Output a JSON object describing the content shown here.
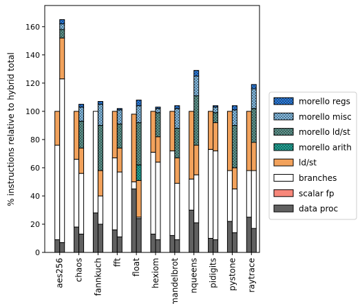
{
  "chart_data": {
    "type": "bar",
    "stacked": true,
    "ylabel": "% instructions relative to hybrid total",
    "xlabel": "",
    "ylim": [
      0,
      175
    ],
    "yticks": [
      0,
      20,
      40,
      60,
      80,
      100,
      120,
      140,
      160
    ],
    "grid": false,
    "legend_position": "right",
    "categories": [
      "aes256",
      "chaos",
      "fannkuch",
      "fft",
      "float",
      "hexiom",
      "mandelbrot",
      "nqueens",
      "pidigits",
      "pystone",
      "raytrace"
    ],
    "bars_per_category": [
      "hybrid",
      "purecap"
    ],
    "series": [
      {
        "name": "data proc",
        "color": "#616161",
        "pattern": "none"
      },
      {
        "name": "scalar fp",
        "color": "#f8877a",
        "pattern": "none"
      },
      {
        "name": "branches",
        "color": "#ffffff",
        "pattern": "none"
      },
      {
        "name": "ld/st",
        "color": "#f2a25c",
        "pattern": "none"
      },
      {
        "name": "morello arith",
        "color": "#1fa89a",
        "pattern": "dots"
      },
      {
        "name": "morello ld/st",
        "color": "#5f9890",
        "pattern": "dots"
      },
      {
        "name": "morello misc",
        "color": "#86c0e8",
        "pattern": "dots"
      },
      {
        "name": "morello regs",
        "color": "#2a7de1",
        "pattern": "dots"
      }
    ],
    "values": {
      "aes256": {
        "hybrid": [
          9,
          0,
          67,
          24,
          0,
          0,
          0,
          0
        ],
        "purecap": [
          7,
          0,
          116,
          29,
          0,
          6,
          4,
          3
        ]
      },
      "chaos": {
        "hybrid": [
          18,
          0,
          48,
          34,
          0,
          0,
          0,
          0
        ],
        "purecap": [
          13,
          0,
          43,
          18,
          0,
          19,
          10,
          2
        ]
      },
      "fannkuch": {
        "hybrid": [
          28,
          0,
          72,
          0,
          0,
          0,
          0,
          0
        ],
        "purecap": [
          20,
          0,
          20,
          18,
          0,
          32,
          15,
          2
        ]
      },
      "fft": {
        "hybrid": [
          16,
          0,
          51,
          33,
          0,
          0,
          0,
          0
        ],
        "purecap": [
          11,
          0,
          46,
          17,
          0,
          17,
          10,
          1
        ]
      },
      "float": {
        "hybrid": [
          45,
          0,
          5,
          48,
          0,
          0,
          0,
          0
        ],
        "purecap": [
          24,
          0,
          1,
          26,
          11,
          30,
          12,
          4
        ]
      },
      "hexiom": {
        "hybrid": [
          13,
          0,
          58,
          29,
          0,
          0,
          0,
          0
        ],
        "purecap": [
          9,
          0,
          55,
          18,
          0,
          17,
          3,
          1
        ]
      },
      "mandelbrot": {
        "hybrid": [
          12,
          0,
          60,
          28,
          0,
          0,
          0,
          0
        ],
        "purecap": [
          9,
          0,
          40,
          18,
          0,
          21,
          14,
          2
        ]
      },
      "nqueens": {
        "hybrid": [
          30,
          0,
          22,
          48,
          0,
          0,
          0,
          0
        ],
        "purecap": [
          21,
          0,
          34,
          21,
          0,
          35,
          14,
          4
        ]
      },
      "pidigits": {
        "hybrid": [
          10,
          0,
          63,
          27,
          0,
          0,
          0,
          0
        ],
        "purecap": [
          9,
          0,
          63,
          20,
          0,
          7,
          4,
          1
        ]
      },
      "pystone": {
        "hybrid": [
          22,
          0,
          36,
          42,
          0,
          0,
          0,
          0
        ],
        "purecap": [
          14,
          0,
          31,
          15,
          0,
          30,
          11,
          3
        ]
      },
      "raytrace": {
        "hybrid": [
          25,
          0,
          33,
          42,
          0,
          0,
          0,
          0
        ],
        "purecap": [
          17,
          0,
          41,
          20,
          0,
          24,
          14,
          3
        ]
      }
    }
  }
}
